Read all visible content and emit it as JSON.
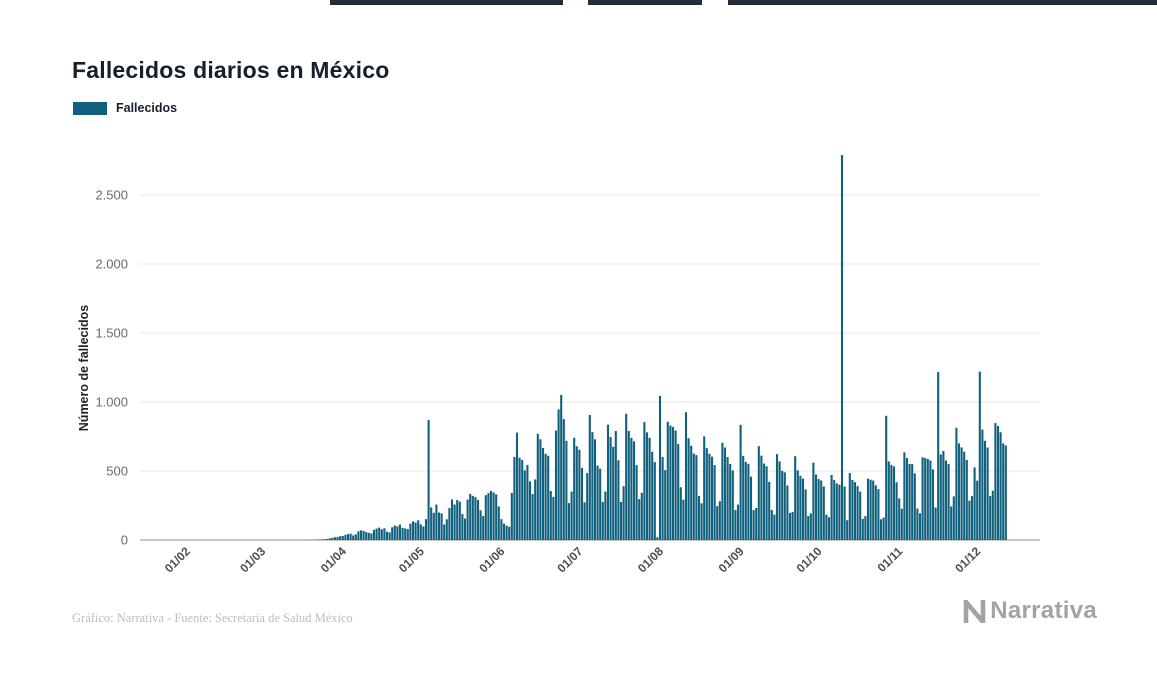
{
  "page": {
    "title": "Fallecidos diarios en México"
  },
  "legend": {
    "label": "Fallecidos",
    "color": "#10607e"
  },
  "footer": {
    "credit": "Gráfico: Narrativa - Fuente: Secretaría de Salud México",
    "brand": "Narrativa"
  },
  "chart_data": {
    "type": "bar",
    "title": "Fallecidos diarios en México",
    "series_name": "Fallecidos",
    "xlabel": "",
    "ylabel": "Número de fallecidos",
    "bar_color": "#10607e",
    "grid": "horizontal",
    "legend_position": "top-left",
    "ylim": [
      0,
      2800
    ],
    "yticks": [
      0,
      500,
      1000,
      1500,
      2000,
      2500
    ],
    "ytick_labels": [
      "0",
      "500",
      "1.000",
      "1.500",
      "2.000",
      "2.500"
    ],
    "xtick_labels": [
      "01/02",
      "01/03",
      "01/04",
      "01/05",
      "01/06",
      "01/07",
      "01/08",
      "01/09",
      "01/10",
      "01/11",
      "01/12"
    ],
    "start_date": "2020-02-01",
    "values": [
      0,
      0,
      0,
      0,
      0,
      0,
      0,
      0,
      0,
      0,
      0,
      0,
      0,
      0,
      0,
      0,
      0,
      0,
      0,
      0,
      0,
      0,
      0,
      0,
      0,
      0,
      0,
      0,
      0,
      0,
      0,
      0,
      0,
      0,
      0,
      0,
      0,
      0,
      0,
      0,
      0,
      0,
      0,
      0,
      0,
      0,
      1,
      1,
      2,
      2,
      3,
      4,
      5,
      6,
      8,
      12,
      16,
      20,
      22,
      28,
      29,
      37,
      43,
      46,
      33,
      41,
      63,
      70,
      66,
      57,
      52,
      48,
      74,
      83,
      90,
      78,
      85,
      60,
      55,
      92,
      105,
      99,
      112,
      88,
      84,
      79,
      118,
      135,
      127,
      143,
      113,
      98,
      151,
      870,
      236,
      197,
      257,
      199,
      193,
      112,
      150,
      231,
      294,
      257,
      290,
      278,
      188,
      155,
      293,
      334,
      320,
      311,
      290,
      215,
      174,
      325,
      340,
      356,
      344,
      331,
      243,
      151,
      119,
      104,
      96,
      341,
      602,
      778,
      596,
      580,
      504,
      544,
      425,
      333,
      439,
      770,
      730,
      667,
      625,
      611,
      355,
      312,
      793,
      947,
      1052,
      876,
      719,
      267,
      351,
      741,
      679,
      654,
      523,
      273,
      485,
      906,
      782,
      730,
      539,
      516,
      276,
      351,
      836,
      746,
      676,
      790,
      578,
      276,
      390,
      915,
      790,
      740,
      715,
      543,
      296,
      342,
      854,
      780,
      741,
      639,
      564,
      20,
      1044,
      602,
      506,
      857,
      829,
      819,
      794,
      695,
      382,
      292,
      926,
      737,
      683,
      627,
      615,
      320,
      266,
      751,
      666,
      625,
      604,
      543,
      245,
      281,
      705,
      670,
      601,
      551,
      504,
      217,
      256,
      835,
      610,
      566,
      552,
      459,
      217,
      232,
      680,
      611,
      554,
      534,
      421,
      217,
      184,
      622,
      570,
      501,
      490,
      395,
      196,
      204,
      607,
      505,
      465,
      445,
      367,
      174,
      193,
      560,
      475,
      442,
      431,
      388,
      184,
      165,
      471,
      434,
      410,
      401,
      2789,
      387,
      143,
      485,
      435,
      419,
      390,
      351,
      152,
      173,
      445,
      437,
      431,
      396,
      368,
      150,
      163,
      900,
      570,
      545,
      533,
      418,
      301,
      227,
      635,
      594,
      551,
      550,
      483,
      228,
      193,
      600,
      594,
      587,
      576,
      512,
      235,
      1218,
      620,
      645,
      576,
      550,
      243,
      316,
      813,
      700,
      671,
      640,
      580,
      285,
      318,
      526,
      430,
      1220,
      800,
      719,
      670,
      318,
      357,
      847,
      826,
      781,
      700,
      685
    ]
  }
}
